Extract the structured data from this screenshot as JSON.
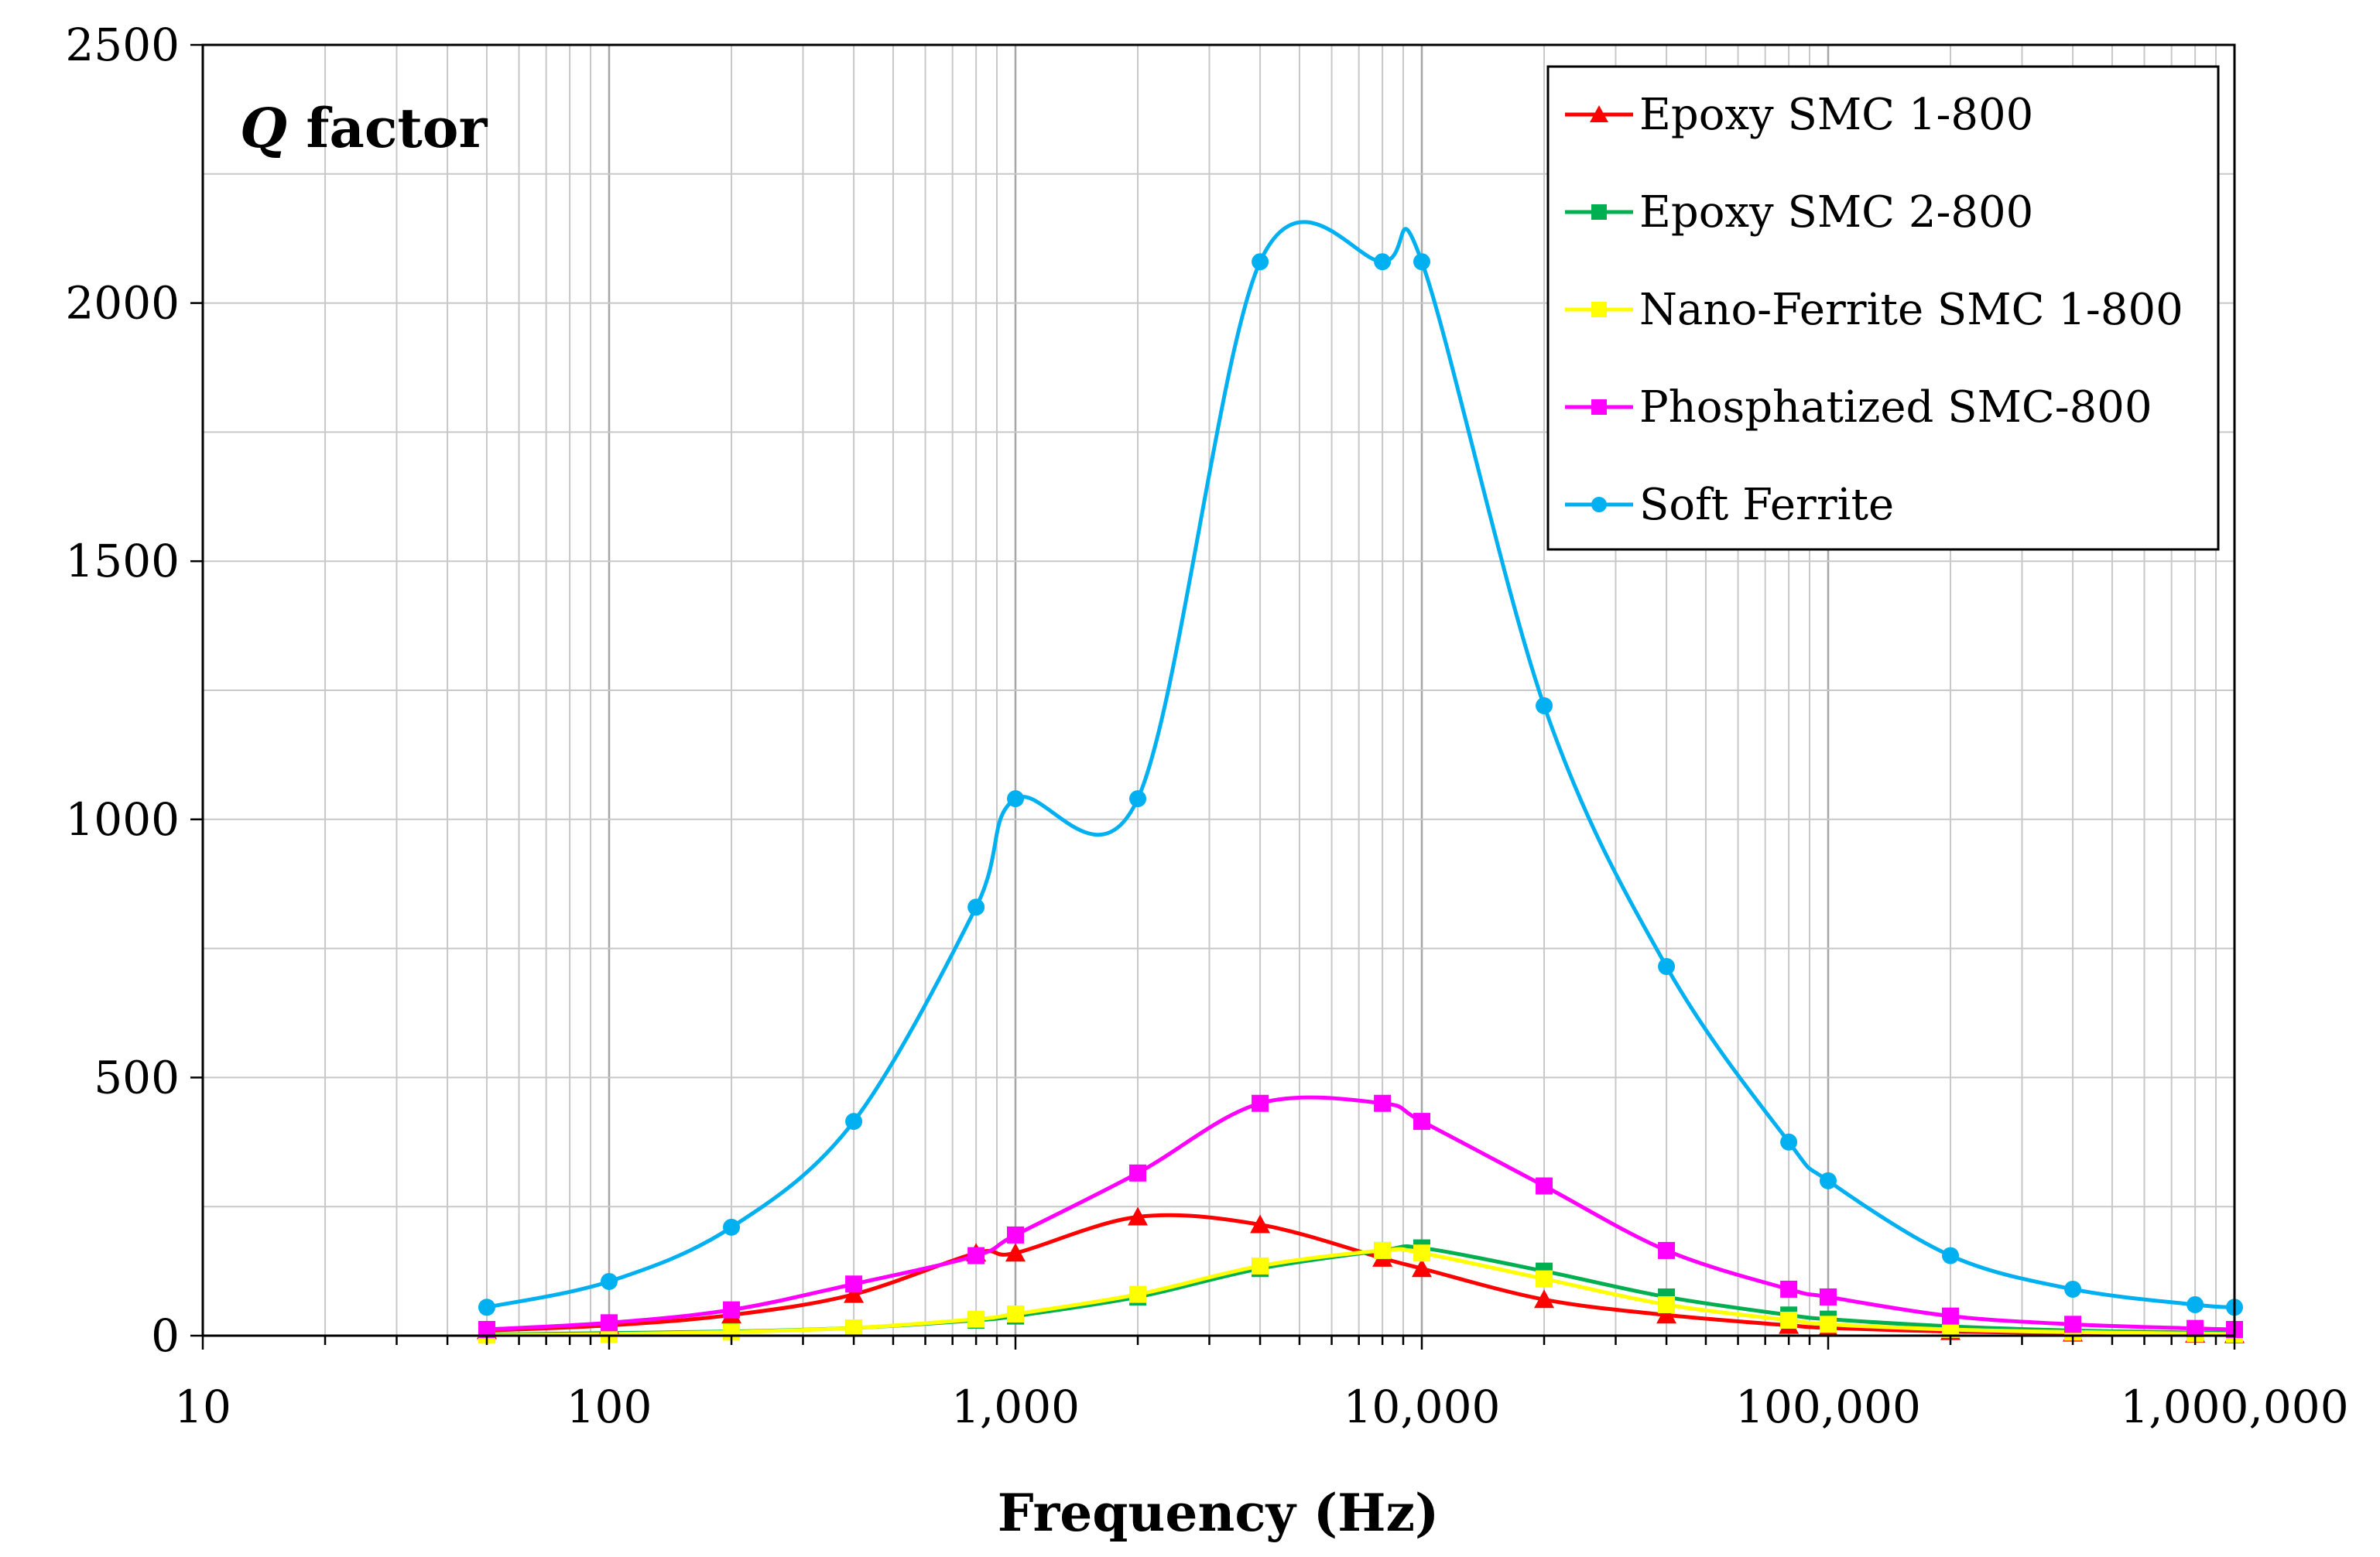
{
  "chart_data": {
    "type": "line",
    "title": "",
    "annotation_symbol": "Q",
    "annotation_text": " factor",
    "xlabel": "Frequency (Hz)",
    "ylabel": "",
    "xscale": "log",
    "xlim": [
      10,
      1000000
    ],
    "ylim": [
      0,
      2500
    ],
    "x_ticks": [
      10,
      100,
      1000,
      10000,
      100000,
      1000000
    ],
    "x_tick_labels": [
      "10",
      "100",
      "1,000",
      "10,000",
      "100,000",
      "1,000,000"
    ],
    "y_ticks": [
      0,
      500,
      1000,
      1500,
      2000,
      2500
    ],
    "y_tick_labels": [
      "0",
      "500",
      "1000",
      "1500",
      "2000",
      "2500"
    ],
    "grid": true,
    "legend_position": "top-right",
    "series": [
      {
        "name": "Epoxy SMC 1-800",
        "color": "#ff0000",
        "marker": "triangle",
        "x": [
          50,
          100,
          200,
          400,
          800,
          1000,
          2000,
          4000,
          8000,
          10000,
          20000,
          40000,
          80000,
          100000,
          200000,
          400000,
          800000,
          1000000
        ],
        "y": [
          10,
          20,
          40,
          80,
          160,
          160,
          230,
          215,
          150,
          130,
          70,
          40,
          20,
          15,
          8,
          5,
          3,
          2
        ]
      },
      {
        "name": "Epoxy SMC 2-800",
        "color": "#00b050",
        "marker": "square",
        "x": [
          50,
          100,
          200,
          400,
          800,
          1000,
          2000,
          4000,
          8000,
          10000,
          20000,
          40000,
          80000,
          100000,
          200000,
          400000,
          800000,
          1000000
        ],
        "y": [
          2,
          5,
          8,
          15,
          30,
          38,
          75,
          130,
          165,
          170,
          125,
          75,
          40,
          32,
          18,
          10,
          6,
          5
        ]
      },
      {
        "name": "Nano-Ferrite SMC 1-800",
        "color": "#ffff00",
        "marker": "square",
        "x": [
          50,
          100,
          200,
          400,
          800,
          1000,
          2000,
          4000,
          8000,
          10000,
          20000,
          40000,
          80000,
          100000,
          200000,
          400000,
          800000,
          1000000
        ],
        "y": [
          1,
          3,
          7,
          15,
          32,
          42,
          80,
          135,
          165,
          160,
          110,
          60,
          30,
          22,
          12,
          7,
          4,
          3
        ]
      },
      {
        "name": "Phosphatized SMC-800",
        "color": "#ff00ff",
        "marker": "square",
        "x": [
          50,
          100,
          200,
          400,
          800,
          1000,
          2000,
          4000,
          8000,
          10000,
          20000,
          40000,
          80000,
          100000,
          200000,
          400000,
          800000,
          1000000
        ],
        "y": [
          12,
          25,
          50,
          100,
          155,
          195,
          315,
          450,
          450,
          415,
          290,
          165,
          90,
          75,
          38,
          22,
          14,
          12
        ]
      },
      {
        "name": "Soft Ferrite",
        "color": "#00b0f0",
        "marker": "circle",
        "x": [
          50,
          100,
          200,
          400,
          800,
          1000,
          2000,
          4000,
          8000,
          10000,
          20000,
          40000,
          80000,
          100000,
          200000,
          400000,
          800000,
          1000000
        ],
        "y": [
          55,
          105,
          210,
          415,
          830,
          1040,
          1040,
          2080,
          2080,
          2080,
          1220,
          715,
          375,
          300,
          155,
          90,
          60,
          55
        ]
      }
    ]
  }
}
